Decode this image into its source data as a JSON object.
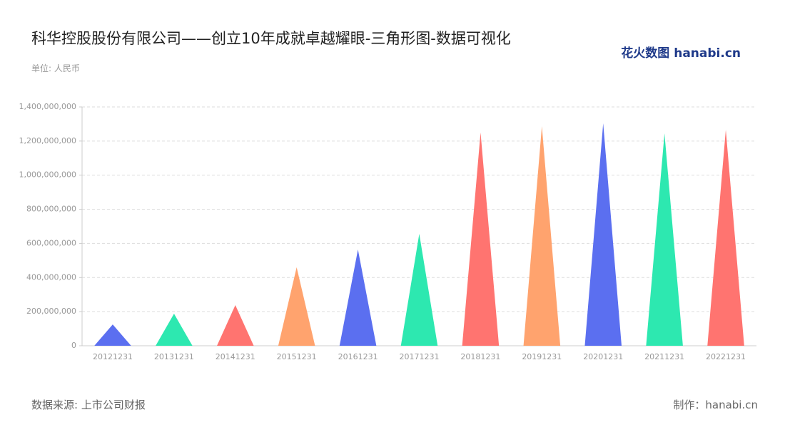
{
  "chart_data": {
    "type": "triangle-bar",
    "title": "科华控股股份有限公司——创立10年成就卓越耀眼-三角形图-数据可视化",
    "subtitle": "单位: 人民币",
    "logo": "花火数图 hanabi.cn",
    "source": "数据来源: 上市公司财报",
    "credit": "制作：hanabi.cn",
    "categories": [
      "20121231",
      "20131231",
      "20141231",
      "20151231",
      "20161231",
      "20171231",
      "20181231",
      "20191231",
      "20201231",
      "20211231",
      "20221231"
    ],
    "values": [
      125000000,
      188000000,
      238000000,
      460000000,
      564000000,
      656000000,
      1250000000,
      1287000000,
      1304000000,
      1245000000,
      1266000000
    ],
    "colors": [
      "#5b6ff0",
      "#2de8b0",
      "#ff7470",
      "#ffa36e",
      "#5b6ff0",
      "#2de8b0",
      "#ff7470",
      "#ffa36e",
      "#5b6ff0",
      "#2de8b0",
      "#ff7470"
    ],
    "ylim": [
      0,
      1400000000
    ],
    "yticks": [
      0,
      {
        "value": 200000000,
        "label": "200,000,000"
      },
      {
        "value": 400000000,
        "label": "400,000,000"
      },
      {
        "value": 600000000,
        "label": "600,000,000"
      },
      {
        "value": 800000000,
        "label": "800,000,000"
      },
      {
        "value": 1000000000,
        "label": "1,000,000,000"
      },
      {
        "value": 1200000000,
        "label": "1,200,000,000"
      },
      {
        "value": 1400000000,
        "label": "1,400,000,000"
      }
    ],
    "grid": true
  }
}
